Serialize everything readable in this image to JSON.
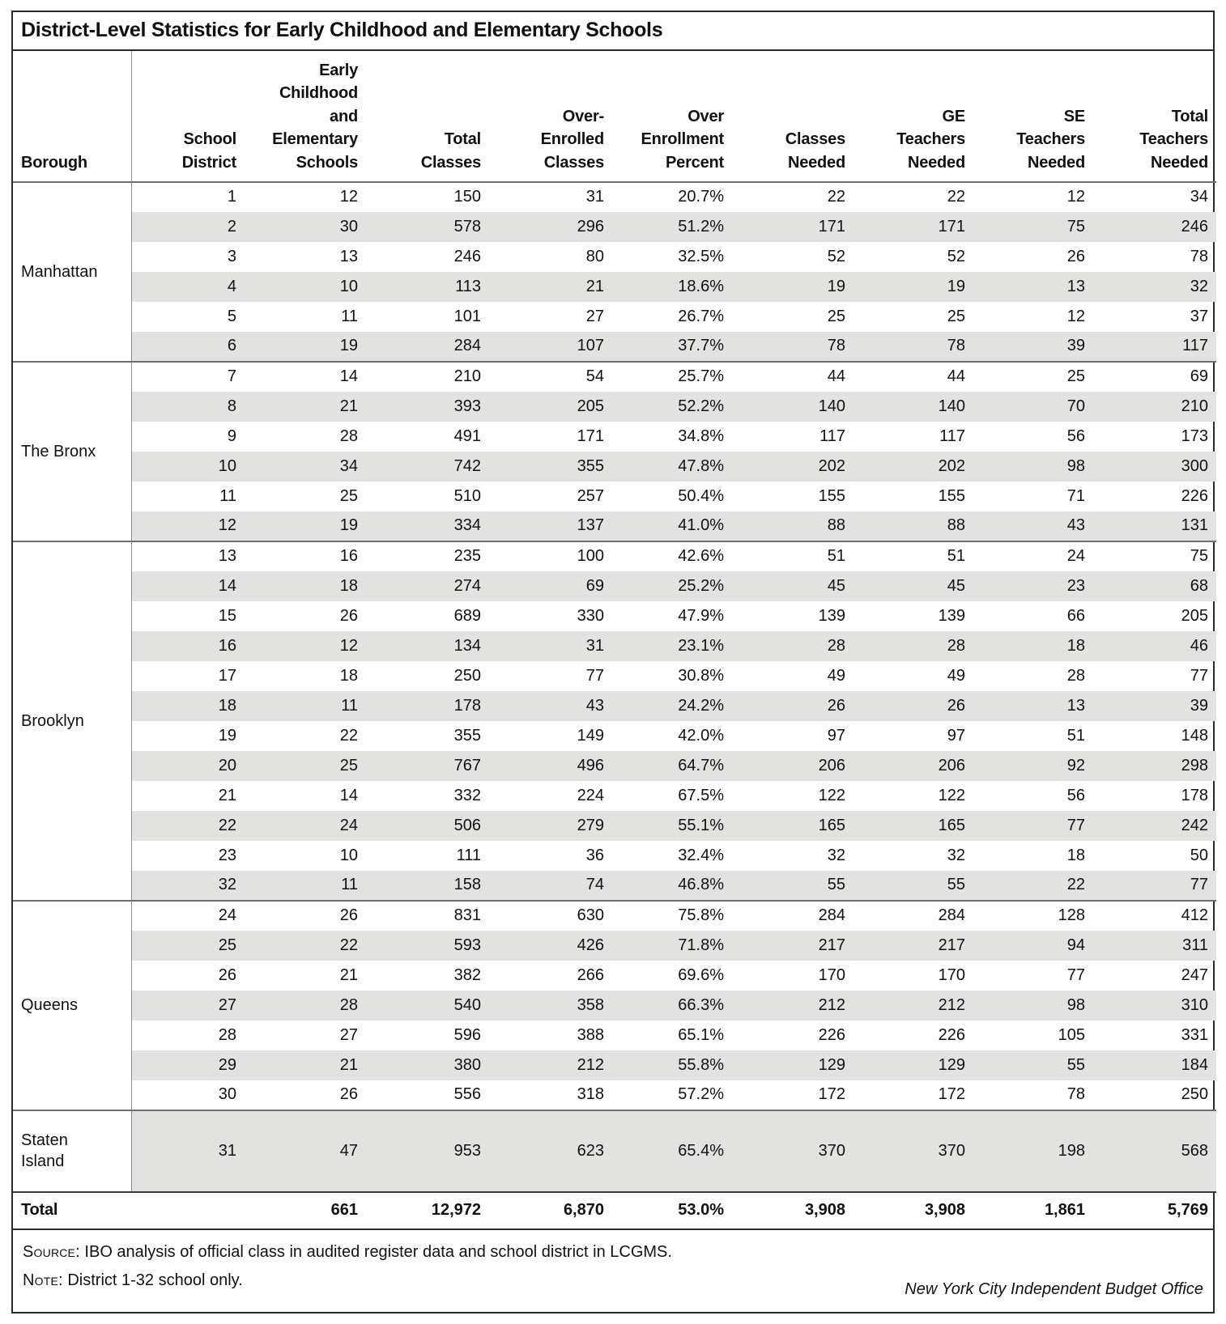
{
  "page": {
    "title": "District-Level Statistics for Early Childhood and Elementary Schools"
  },
  "table": {
    "column_headers": [
      "Borough",
      "School\nDistrict",
      "Early\nChildhood\nand\nElementary\nSchools",
      "Total\nClasses",
      "Over-\nEnrolled\nClasses",
      "Over\nEnrollment\nPercent",
      "Classes\nNeeded",
      "GE\nTeachers\nNeeded",
      "SE\nTeachers\nNeeded",
      "Total\nTeachers\nNeeded"
    ],
    "groups": [
      {
        "borough": "Manhattan",
        "rows": [
          [
            "1",
            "12",
            "150",
            "31",
            "20.7%",
            "22",
            "22",
            "12",
            "34"
          ],
          [
            "2",
            "30",
            "578",
            "296",
            "51.2%",
            "171",
            "171",
            "75",
            "246"
          ],
          [
            "3",
            "13",
            "246",
            "80",
            "32.5%",
            "52",
            "52",
            "26",
            "78"
          ],
          [
            "4",
            "10",
            "113",
            "21",
            "18.6%",
            "19",
            "19",
            "13",
            "32"
          ],
          [
            "5",
            "11",
            "101",
            "27",
            "26.7%",
            "25",
            "25",
            "12",
            "37"
          ],
          [
            "6",
            "19",
            "284",
            "107",
            "37.7%",
            "78",
            "78",
            "39",
            "117"
          ]
        ]
      },
      {
        "borough": "The Bronx",
        "rows": [
          [
            "7",
            "14",
            "210",
            "54",
            "25.7%",
            "44",
            "44",
            "25",
            "69"
          ],
          [
            "8",
            "21",
            "393",
            "205",
            "52.2%",
            "140",
            "140",
            "70",
            "210"
          ],
          [
            "9",
            "28",
            "491",
            "171",
            "34.8%",
            "117",
            "117",
            "56",
            "173"
          ],
          [
            "10",
            "34",
            "742",
            "355",
            "47.8%",
            "202",
            "202",
            "98",
            "300"
          ],
          [
            "11",
            "25",
            "510",
            "257",
            "50.4%",
            "155",
            "155",
            "71",
            "226"
          ],
          [
            "12",
            "19",
            "334",
            "137",
            "41.0%",
            "88",
            "88",
            "43",
            "131"
          ]
        ]
      },
      {
        "borough": "Brooklyn",
        "rows": [
          [
            "13",
            "16",
            "235",
            "100",
            "42.6%",
            "51",
            "51",
            "24",
            "75"
          ],
          [
            "14",
            "18",
            "274",
            "69",
            "25.2%",
            "45",
            "45",
            "23",
            "68"
          ],
          [
            "15",
            "26",
            "689",
            "330",
            "47.9%",
            "139",
            "139",
            "66",
            "205"
          ],
          [
            "16",
            "12",
            "134",
            "31",
            "23.1%",
            "28",
            "28",
            "18",
            "46"
          ],
          [
            "17",
            "18",
            "250",
            "77",
            "30.8%",
            "49",
            "49",
            "28",
            "77"
          ],
          [
            "18",
            "11",
            "178",
            "43",
            "24.2%",
            "26",
            "26",
            "13",
            "39"
          ],
          [
            "19",
            "22",
            "355",
            "149",
            "42.0%",
            "97",
            "97",
            "51",
            "148"
          ],
          [
            "20",
            "25",
            "767",
            "496",
            "64.7%",
            "206",
            "206",
            "92",
            "298"
          ],
          [
            "21",
            "14",
            "332",
            "224",
            "67.5%",
            "122",
            "122",
            "56",
            "178"
          ],
          [
            "22",
            "24",
            "506",
            "279",
            "55.1%",
            "165",
            "165",
            "77",
            "242"
          ],
          [
            "23",
            "10",
            "111",
            "36",
            "32.4%",
            "32",
            "32",
            "18",
            "50"
          ],
          [
            "32",
            "11",
            "158",
            "74",
            "46.8%",
            "55",
            "55",
            "22",
            "77"
          ]
        ]
      },
      {
        "borough": "Queens",
        "rows": [
          [
            "24",
            "26",
            "831",
            "630",
            "75.8%",
            "284",
            "284",
            "128",
            "412"
          ],
          [
            "25",
            "22",
            "593",
            "426",
            "71.8%",
            "217",
            "217",
            "94",
            "311"
          ],
          [
            "26",
            "21",
            "382",
            "266",
            "69.6%",
            "170",
            "170",
            "77",
            "247"
          ],
          [
            "27",
            "28",
            "540",
            "358",
            "66.3%",
            "212",
            "212",
            "98",
            "310"
          ],
          [
            "28",
            "27",
            "596",
            "388",
            "65.1%",
            "226",
            "226",
            "105",
            "331"
          ],
          [
            "29",
            "21",
            "380",
            "212",
            "55.8%",
            "129",
            "129",
            "55",
            "184"
          ],
          [
            "30",
            "26",
            "556",
            "318",
            "57.2%",
            "172",
            "172",
            "78",
            "250"
          ]
        ]
      },
      {
        "borough": "Staten\nIsland",
        "tall": true,
        "rows": [
          [
            "31",
            "47",
            "953",
            "623",
            "65.4%",
            "370",
            "370",
            "198",
            "568"
          ]
        ]
      }
    ],
    "total_row": {
      "label": "Total",
      "values": [
        "661",
        "12,972",
        "6,870",
        "53.0%",
        "3,908",
        "3,908",
        "1,861",
        "5,769"
      ]
    }
  },
  "footer": {
    "source_label": "Source:",
    "source_text": " IBO analysis of official class in audited register data and school district in LCGMS.",
    "note_label": "Note:",
    "note_text": " District 1-32 school only.",
    "attribution": "New York City Independent Budget Office"
  }
}
